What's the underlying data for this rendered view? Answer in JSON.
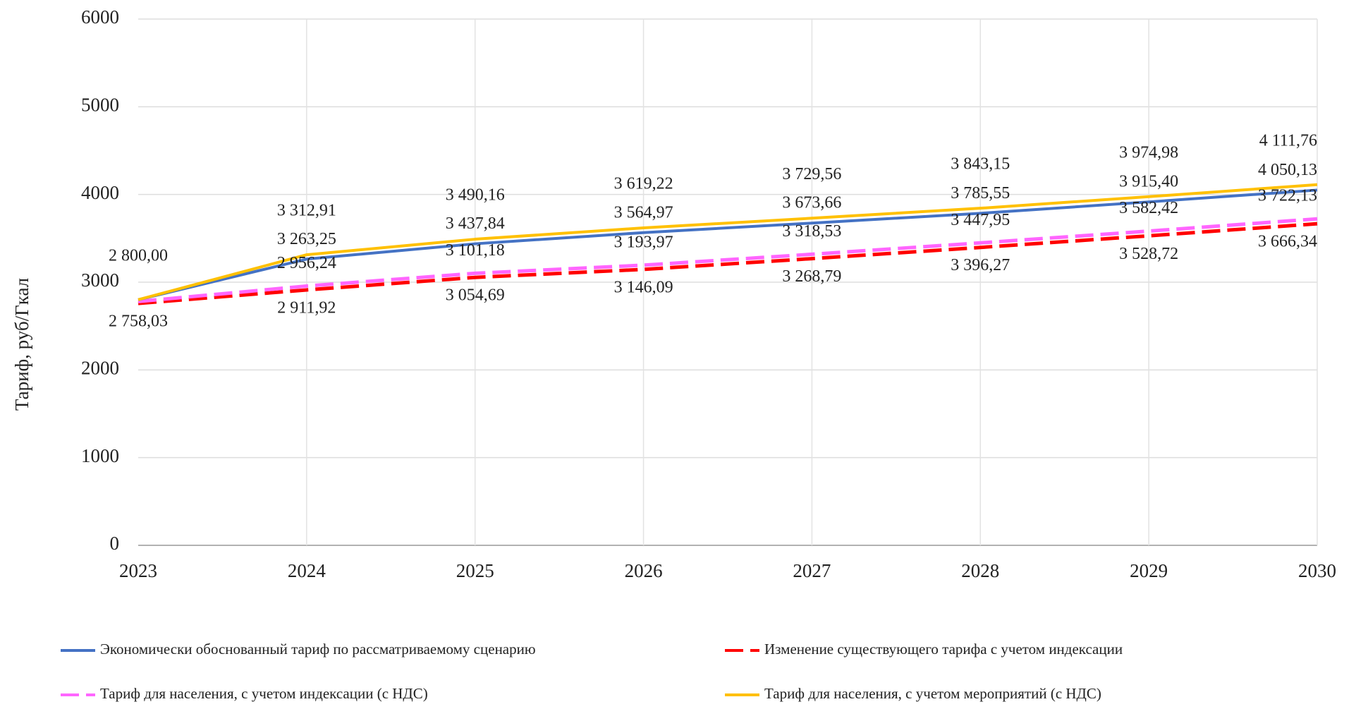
{
  "chart_data": {
    "type": "line",
    "ylabel": "Тариф,  руб/Гкал",
    "categories": [
      "2023",
      "2024",
      "2025",
      "2026",
      "2027",
      "2028",
      "2029",
      "2030"
    ],
    "ylim": [
      0,
      6000
    ],
    "yticks": [
      0,
      1000,
      2000,
      3000,
      4000,
      5000,
      6000
    ],
    "grid": true,
    "series": [
      {
        "name": "Экономически  обоснованный  тариф  по  рассматриваемому  сценарию",
        "color": "#4472c4",
        "dash": false,
        "values": [
          2800,
          3263.25,
          3437.84,
          3564.97,
          3673.66,
          3785.55,
          3915.4,
          4050.13
        ],
        "value_labels": [
          null,
          "3 263,25",
          "3 437,84",
          "3 564,97",
          "3 673,66",
          "3 785,55",
          "3 915,40",
          "4 050,13"
        ]
      },
      {
        "name": "Изменение  существующего тарифа  с учетом индексации",
        "color": "#ff0000",
        "dash": true,
        "values": [
          2758.03,
          2911.92,
          3054.69,
          3146.09,
          3268.79,
          3396.27,
          3528.72,
          3666.34
        ],
        "value_labels": [
          "2 758,03",
          "2 911,92",
          "3 054,69",
          "3 146,09",
          "3 268,79",
          "3 396,27",
          "3 528,72",
          "3 666,34"
        ]
      },
      {
        "name": "Тариф  для населения,  с учетом индексации  (с НДС)",
        "color": "#ff66ff",
        "dash": true,
        "values": [
          2780,
          2956.24,
          3101.18,
          3193.97,
          3318.53,
          3447.95,
          3582.42,
          3722.13
        ],
        "value_labels": [
          null,
          "2 956,24",
          "3 101,18",
          "3 193,97",
          "3 318,53",
          "3 447,95",
          "3 582,42",
          "3 722,13"
        ]
      },
      {
        "name": "Тариф  для населения,  с учетом мероприятий  (с НДС)",
        "color": "#ffc000",
        "dash": false,
        "values": [
          2800.0,
          3312.91,
          3490.16,
          3619.22,
          3729.56,
          3843.15,
          3974.98,
          4111.76
        ],
        "value_labels": [
          "2 800,00",
          "3 312,91",
          "3 490,16",
          "3 619,22",
          "3 729,56",
          "3 843,15",
          "3 974,98",
          "4 111,76"
        ]
      }
    ]
  }
}
